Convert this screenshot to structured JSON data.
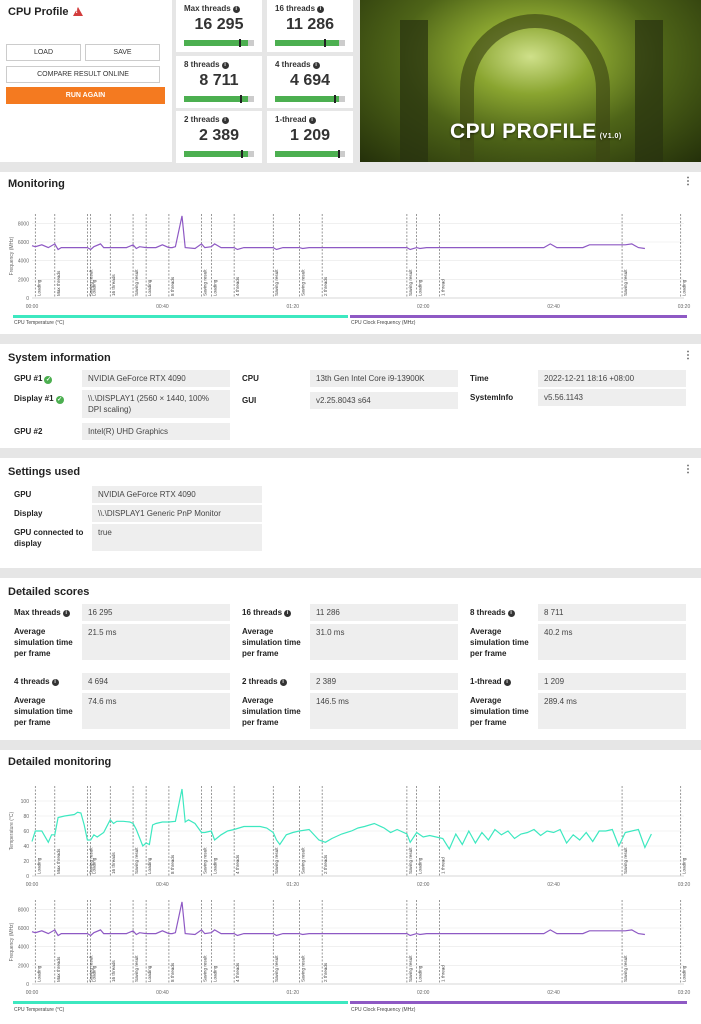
{
  "profile": {
    "title": "CPU Profile",
    "buttons": {
      "load": "LOAD",
      "save": "SAVE",
      "compare": "COMPARE RESULT ONLINE",
      "run_again": "RUN AGAIN"
    }
  },
  "scores": [
    {
      "label": "Max threads",
      "value": "16 295",
      "bar_fill": 0.92,
      "marker": 0.78
    },
    {
      "label": "16 threads",
      "value": "11 286",
      "bar_fill": 0.92,
      "marker": 0.7
    },
    {
      "label": "8 threads",
      "value": "8 711",
      "bar_fill": 0.92,
      "marker": 0.8
    },
    {
      "label": "4 threads",
      "value": "4 694",
      "bar_fill": 0.92,
      "marker": 0.84
    },
    {
      "label": "2 threads",
      "value": "2 389",
      "bar_fill": 0.92,
      "marker": 0.82
    },
    {
      "label": "1-thread",
      "value": "1 209",
      "bar_fill": 0.92,
      "marker": 0.9
    }
  ],
  "hero": {
    "title": "CPU PROFILE",
    "version": "(V1.0)"
  },
  "monitoring": {
    "title": "Monitoring",
    "ylabel_freq": "Frequency (MHz)",
    "ylabel_temp": "Temperature (°C)",
    "legend_temp": "CPU Temperature (°C)",
    "legend_clock": "CPU Clock Frequency (MHz)",
    "temp_color": "#3de8c0",
    "clock_color": "#8e59c4"
  },
  "chart_data": [
    {
      "type": "line",
      "name": "monitoring-frequency",
      "x_ticks": [
        "00:00",
        "00:40",
        "01:20",
        "02:00",
        "02:40",
        "03:20"
      ],
      "y_ticks": [
        0,
        2000,
        4000,
        6000,
        8000
      ],
      "ylim": [
        0,
        9000
      ],
      "xlim": [
        0,
        200
      ],
      "ylabel": "Frequency (MHz)",
      "markers": [
        {
          "t": 1,
          "label": "Loading"
        },
        {
          "t": 7,
          "label": "Max threads"
        },
        {
          "t": 17,
          "label": "Saving result"
        },
        {
          "t": 18,
          "label": "Loading"
        },
        {
          "t": 24,
          "label": "16 threads"
        },
        {
          "t": 31,
          "label": "Saving result"
        },
        {
          "t": 35,
          "label": "Loading"
        },
        {
          "t": 42,
          "label": "8 threads"
        },
        {
          "t": 52,
          "label": "Saving result"
        },
        {
          "t": 55,
          "label": "Loading"
        },
        {
          "t": 62,
          "label": "4 threads"
        },
        {
          "t": 74,
          "label": "Saving result"
        },
        {
          "t": 82,
          "label": "Saving result"
        },
        {
          "t": 89,
          "label": "2 threads"
        },
        {
          "t": 115,
          "label": "Saving result"
        },
        {
          "t": 118,
          "label": "Loading"
        },
        {
          "t": 125,
          "label": "1 thread"
        },
        {
          "t": 181,
          "label": "Saving result"
        },
        {
          "t": 199,
          "label": "Loading"
        }
      ],
      "series": [
        {
          "x": [
            0,
            1,
            3,
            5,
            7,
            8,
            9,
            11,
            14,
            16,
            17,
            18,
            19,
            21,
            22,
            24,
            25,
            27,
            29,
            31,
            32,
            33,
            35,
            36,
            38,
            40,
            42,
            43,
            44,
            46,
            47,
            50,
            52,
            53,
            55,
            56,
            58,
            60,
            62,
            63,
            65,
            69,
            74,
            75,
            77,
            80,
            82,
            83,
            85,
            90,
            95,
            100,
            105,
            110,
            115,
            116,
            118,
            119,
            121,
            126,
            131,
            136,
            141,
            146,
            151,
            156,
            157,
            159,
            161,
            164,
            167,
            169,
            171,
            176,
            181,
            182,
            184,
            186,
            188
          ],
          "y": [
            5600,
            5500,
            5700,
            5400,
            5800,
            5200,
            5400,
            5400,
            5400,
            5400,
            5400,
            5200,
            5500,
            5800,
            5400,
            5400,
            5400,
            5400,
            5400,
            5700,
            5300,
            5500,
            5400,
            5400,
            5400,
            5700,
            5400,
            5400,
            5500,
            8800,
            5400,
            5300,
            5800,
            5400,
            5500,
            5800,
            5400,
            5400,
            5400,
            5200,
            5400,
            5400,
            5400,
            5200,
            5400,
            5400,
            5400,
            5300,
            5400,
            5400,
            5400,
            5400,
            5400,
            5400,
            5400,
            5200,
            5400,
            5300,
            5400,
            5400,
            5400,
            5400,
            5400,
            5400,
            5400,
            5400,
            5400,
            5800,
            5400,
            5400,
            5400,
            5400,
            5700,
            5700,
            5700,
            5700,
            5800,
            5400,
            5300
          ]
        }
      ]
    },
    {
      "type": "line",
      "name": "detailed-temperature",
      "x_ticks": [
        "00:00",
        "00:40",
        "01:20",
        "02:00",
        "02:40",
        "03:20"
      ],
      "y_ticks": [
        0,
        20,
        40,
        60,
        80,
        100
      ],
      "ylim": [
        0,
        120
      ],
      "xlim": [
        0,
        200
      ],
      "ylabel": "Temperature (°C)",
      "series": [
        {
          "x": [
            0,
            1,
            3,
            5,
            6,
            7,
            8,
            10,
            13,
            14,
            15,
            16,
            17,
            18,
            19,
            20,
            22,
            24,
            25,
            26,
            28,
            30,
            31,
            32,
            34,
            35,
            36,
            37,
            38,
            40,
            42,
            44,
            46,
            47,
            48,
            50,
            52,
            53,
            55,
            56,
            58,
            60,
            62,
            65,
            68,
            70,
            72,
            74,
            75,
            76,
            78,
            80,
            82,
            85,
            88,
            90,
            92,
            95,
            98,
            100,
            102,
            105,
            108,
            110,
            112,
            115,
            116,
            118,
            120,
            122,
            124,
            126,
            128,
            130,
            132,
            134,
            136,
            138,
            140,
            142,
            144,
            146,
            148,
            150,
            152,
            154,
            156,
            158,
            160,
            162,
            164,
            166,
            168,
            170,
            172,
            174,
            176,
            178,
            180,
            182,
            184,
            186,
            188,
            190
          ],
          "y": [
            46,
            60,
            60,
            45,
            55,
            55,
            78,
            80,
            82,
            85,
            84,
            68,
            48,
            48,
            55,
            52,
            58,
            75,
            70,
            73,
            73,
            72,
            70,
            62,
            40,
            44,
            42,
            68,
            70,
            72,
            72,
            73,
            116,
            72,
            75,
            70,
            58,
            58,
            60,
            48,
            55,
            60,
            62,
            66,
            66,
            66,
            64,
            58,
            48,
            42,
            55,
            58,
            60,
            62,
            48,
            45,
            50,
            56,
            60,
            64,
            66,
            70,
            64,
            58,
            62,
            56,
            45,
            58,
            52,
            54,
            52,
            50,
            36,
            56,
            42,
            60,
            44,
            58,
            48,
            62,
            55,
            60,
            50,
            56,
            58,
            62,
            54,
            60,
            58,
            62,
            44,
            55,
            48,
            58,
            46,
            60,
            60,
            62,
            40,
            58,
            60,
            62,
            38,
            56
          ]
        }
      ]
    },
    {
      "type": "line",
      "name": "detailed-frequency",
      "x_ticks": [
        "00:00",
        "00:40",
        "01:20",
        "02:00",
        "02:40",
        "03:20"
      ],
      "y_ticks": [
        0,
        2000,
        4000,
        6000,
        8000
      ],
      "ylim": [
        0,
        9000
      ],
      "xlim": [
        0,
        200
      ],
      "ylabel": "Frequency (MHz)",
      "series": [
        {
          "same_as": "monitoring-frequency"
        }
      ]
    }
  ],
  "system_info": {
    "title": "System information",
    "rows": [
      {
        "label": "GPU #1",
        "value": "NVIDIA GeForce RTX 4090",
        "ok": true
      },
      {
        "label": "Display #1",
        "value": "\\\\.\\DISPLAY1 (2560 × 1440, 100% DPI scaling)",
        "ok": true
      },
      {
        "label": "GPU #2",
        "value": "Intel(R) UHD Graphics"
      },
      {
        "label": "CPU",
        "value": "13th Gen Intel Core i9-13900K"
      },
      {
        "label": "GUI",
        "value": "v2.25.8043 s64"
      },
      {
        "label": "Time",
        "value": "2022-12-21 18:16 +08:00"
      },
      {
        "label": "SystemInfo",
        "value": "v5.56.1143"
      }
    ]
  },
  "settings": {
    "title": "Settings used",
    "rows": [
      {
        "label": "GPU",
        "value": "NVIDIA GeForce RTX 4090"
      },
      {
        "label": "Display",
        "value": "\\\\.\\DISPLAY1 Generic PnP Monitor"
      },
      {
        "label": "GPU connected to display",
        "value": "true"
      }
    ]
  },
  "detailed_scores": {
    "title": "Detailed scores",
    "avg_label": "Average simulation time per frame",
    "items": [
      {
        "label": "Max threads",
        "score": "16 295",
        "time": "21.5 ms"
      },
      {
        "label": "16 threads",
        "score": "11 286",
        "time": "31.0 ms"
      },
      {
        "label": "8 threads",
        "score": "8 711",
        "time": "40.2 ms"
      },
      {
        "label": "4 threads",
        "score": "4 694",
        "time": "74.6 ms"
      },
      {
        "label": "2 threads",
        "score": "2 389",
        "time": "146.5 ms"
      },
      {
        "label": "1-thread",
        "score": "1 209",
        "time": "289.4 ms"
      }
    ]
  },
  "detailed_monitoring": {
    "title": "Detailed monitoring"
  }
}
